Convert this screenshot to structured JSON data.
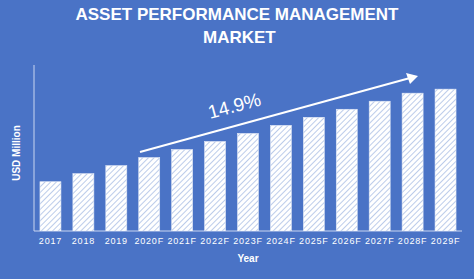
{
  "chart_data": {
    "type": "bar",
    "title": "ASSET PERFORMANCE MANAGEMENT MARKET",
    "x_label": "Year",
    "y_label": "USD Million",
    "annotation": "14.9%",
    "categories": [
      "2017",
      "2018",
      "2019",
      "2020F",
      "2021F",
      "2022F",
      "2023F",
      "2024F",
      "2025F",
      "2026F",
      "2027F",
      "2028F",
      "2029F"
    ],
    "values": [
      49,
      57,
      65,
      73,
      81,
      89,
      97,
      105,
      113,
      121,
      129,
      137,
      141
    ],
    "color": "#ffffff",
    "ylim": [
      0,
      165
    ],
    "grid": false,
    "tick_labels": "x"
  }
}
